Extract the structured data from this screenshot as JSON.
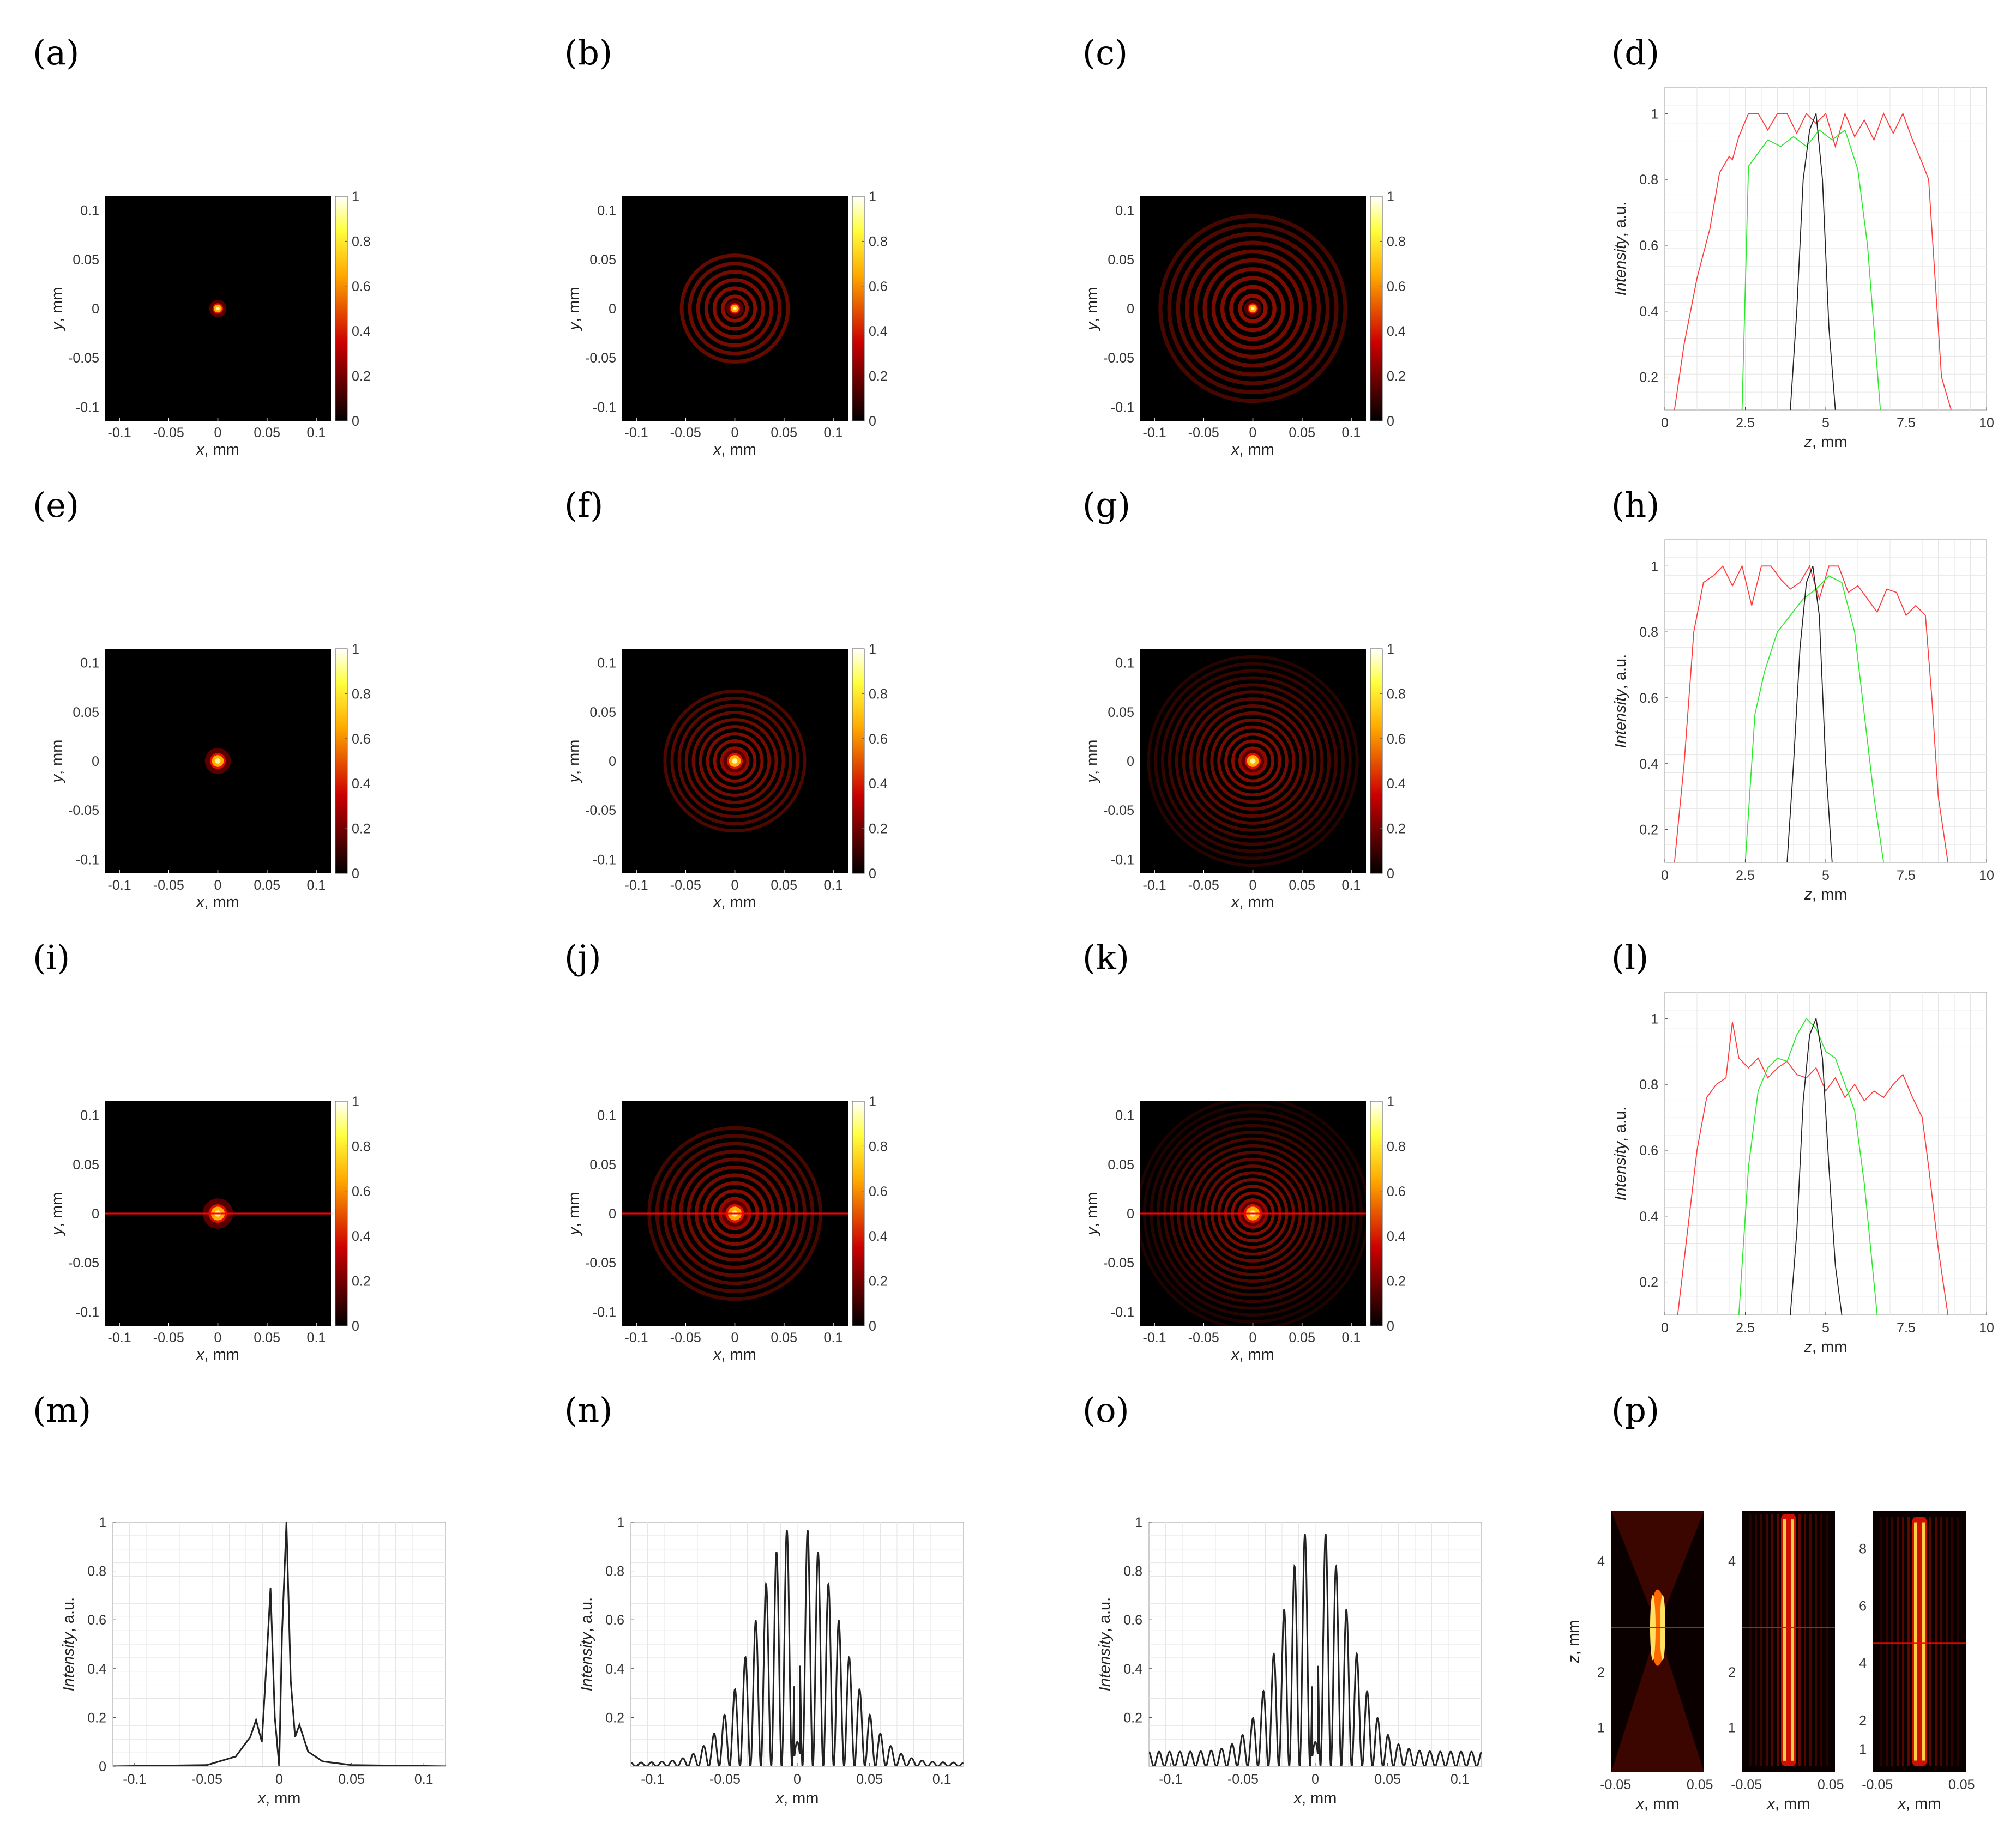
{
  "panel_labels": [
    "(a)",
    "(b)",
    "(c)",
    "(d)",
    "(e)",
    "(f)",
    "(g)",
    "(h)",
    "(i)",
    "(j)",
    "(k)",
    "(l)",
    "(m)",
    "(n)",
    "(o)",
    "(p)"
  ],
  "colors": {
    "red": "#ff3b3b",
    "green": "#2ee82e",
    "black": "#222222",
    "line": "#ff0000"
  },
  "chart_data": [
    {
      "type": "heatmap",
      "panel": "(a)",
      "xlabel": "x, mm",
      "ylabel": "y, mm",
      "xticks": [
        -0.1,
        -0.05,
        0,
        0.05,
        0.1
      ],
      "yticks": [
        0.1,
        0.05,
        0,
        -0.05,
        -0.1
      ],
      "colorbar_ticks": [
        0,
        0.2,
        0.4,
        0.6,
        0.8,
        1
      ],
      "colormap": "hot",
      "center_ring_radius": 0.004,
      "rings": 0,
      "ring_extent": 0.01,
      "red_line_y": null
    },
    {
      "type": "heatmap",
      "panel": "(b)",
      "xlabel": "x, mm",
      "ylabel": "y, mm",
      "xticks": [
        -0.1,
        -0.05,
        0,
        0.05,
        0.1
      ],
      "yticks": [
        0.1,
        0.05,
        0,
        -0.05,
        -0.1
      ],
      "colorbar_ticks": [
        0,
        0.2,
        0.4,
        0.6,
        0.8,
        1
      ],
      "colormap": "hot",
      "center_ring_radius": 0.004,
      "rings": 6,
      "ring_extent": 0.05,
      "red_line_y": null
    },
    {
      "type": "heatmap",
      "panel": "(c)",
      "xlabel": "x, mm",
      "ylabel": "y, mm",
      "xticks": [
        -0.1,
        -0.05,
        0,
        0.05,
        0.1
      ],
      "yticks": [
        0.1,
        0.05,
        0,
        -0.05,
        -0.1
      ],
      "colorbar_ticks": [
        0,
        0.2,
        0.4,
        0.6,
        0.8,
        1
      ],
      "colormap": "hot",
      "center_ring_radius": 0.004,
      "rings": 10,
      "ring_extent": 0.09,
      "red_line_y": null
    },
    {
      "type": "line",
      "panel": "(d)",
      "xlabel": "z, mm",
      "ylabel": "Intensity, a.u.",
      "xlim": [
        0,
        10
      ],
      "ylim": [
        0.1,
        1.08
      ],
      "xticks": [
        0,
        2.5,
        5,
        7.5,
        10
      ],
      "yticks": [
        0.2,
        0.4,
        0.6,
        0.8,
        1
      ],
      "grid": true,
      "series": [
        {
          "color": "red",
          "x": [
            0.3,
            0.6,
            1.0,
            1.4,
            1.7,
            2.0,
            2.1,
            2.3,
            2.6,
            2.9,
            3.2,
            3.5,
            3.8,
            4.1,
            4.4,
            4.7,
            5.0,
            5.3,
            5.6,
            5.9,
            6.2,
            6.5,
            6.8,
            7.1,
            7.4,
            7.7,
            8.0,
            8.2,
            8.4,
            8.6,
            8.9
          ],
          "y": [
            0.1,
            0.3,
            0.5,
            0.65,
            0.82,
            0.87,
            0.86,
            0.93,
            1.0,
            1.0,
            0.95,
            1.0,
            1.0,
            0.94,
            1.0,
            0.97,
            1.0,
            0.9,
            1.0,
            0.93,
            0.98,
            0.92,
            1.0,
            0.94,
            1.0,
            0.92,
            0.85,
            0.8,
            0.5,
            0.2,
            0.1
          ]
        },
        {
          "color": "green",
          "x": [
            2.4,
            2.6,
            2.9,
            3.2,
            3.6,
            4.0,
            4.4,
            4.8,
            5.2,
            5.6,
            6.0,
            6.3,
            6.7
          ],
          "y": [
            0.1,
            0.84,
            0.88,
            0.92,
            0.9,
            0.93,
            0.9,
            0.95,
            0.92,
            0.95,
            0.83,
            0.6,
            0.1
          ]
        },
        {
          "color": "black",
          "x": [
            3.9,
            4.1,
            4.3,
            4.5,
            4.7,
            4.9,
            5.1,
            5.3
          ],
          "y": [
            0.1,
            0.4,
            0.8,
            0.95,
            1.0,
            0.8,
            0.35,
            0.1
          ]
        }
      ]
    },
    {
      "type": "heatmap",
      "panel": "(e)",
      "xlabel": "x, mm",
      "ylabel": "y, mm",
      "xticks": [
        -0.1,
        -0.05,
        0,
        0.05,
        0.1
      ],
      "yticks": [
        0.1,
        0.05,
        0,
        -0.05,
        -0.1
      ],
      "colorbar_ticks": [
        0,
        0.2,
        0.4,
        0.6,
        0.8,
        1
      ],
      "colormap": "hot",
      "center_ring_radius": 0.006,
      "rings": 0,
      "ring_extent": 0.015,
      "red_line_y": null
    },
    {
      "type": "heatmap",
      "panel": "(f)",
      "xlabel": "x, mm",
      "ylabel": "y, mm",
      "xticks": [
        -0.1,
        -0.05,
        0,
        0.05,
        0.1
      ],
      "yticks": [
        0.1,
        0.05,
        0,
        -0.05,
        -0.1
      ],
      "colorbar_ticks": [
        0,
        0.2,
        0.4,
        0.6,
        0.8,
        1
      ],
      "colormap": "hot",
      "center_ring_radius": 0.006,
      "rings": 9,
      "ring_extent": 0.065,
      "red_line_y": null
    },
    {
      "type": "heatmap",
      "panel": "(g)",
      "xlabel": "x, mm",
      "ylabel": "y, mm",
      "xticks": [
        -0.1,
        -0.05,
        0,
        0.05,
        0.1
      ],
      "yticks": [
        0.1,
        0.05,
        0,
        -0.05,
        -0.1
      ],
      "colorbar_ticks": [
        0,
        0.2,
        0.4,
        0.6,
        0.8,
        1
      ],
      "colormap": "hot",
      "center_ring_radius": 0.006,
      "rings": 14,
      "ring_extent": 0.1,
      "red_line_y": null
    },
    {
      "type": "line",
      "panel": "(h)",
      "xlabel": "z, mm",
      "ylabel": "Intensity, a.u.",
      "xlim": [
        0,
        10
      ],
      "ylim": [
        0.1,
        1.08
      ],
      "xticks": [
        0,
        2.5,
        5,
        7.5,
        10
      ],
      "yticks": [
        0.2,
        0.4,
        0.6,
        0.8,
        1
      ],
      "grid": true,
      "series": [
        {
          "color": "red",
          "x": [
            0.3,
            0.6,
            0.9,
            1.2,
            1.5,
            1.8,
            2.1,
            2.4,
            2.7,
            3.0,
            3.3,
            3.6,
            3.9,
            4.2,
            4.5,
            4.8,
            5.1,
            5.4,
            5.7,
            6.0,
            6.3,
            6.6,
            6.9,
            7.2,
            7.5,
            7.8,
            8.1,
            8.3,
            8.5,
            8.8
          ],
          "y": [
            0.1,
            0.4,
            0.8,
            0.95,
            0.97,
            1.0,
            0.94,
            1.0,
            0.88,
            1.0,
            1.0,
            0.96,
            0.93,
            0.95,
            1.0,
            0.9,
            1.0,
            1.0,
            0.92,
            0.94,
            0.9,
            0.86,
            0.93,
            0.92,
            0.85,
            0.88,
            0.85,
            0.6,
            0.3,
            0.1
          ]
        },
        {
          "color": "green",
          "x": [
            2.5,
            2.8,
            3.1,
            3.5,
            3.9,
            4.3,
            4.7,
            5.1,
            5.5,
            5.9,
            6.2,
            6.5,
            6.8
          ],
          "y": [
            0.1,
            0.55,
            0.68,
            0.8,
            0.85,
            0.9,
            0.93,
            0.97,
            0.95,
            0.8,
            0.55,
            0.3,
            0.1
          ]
        },
        {
          "color": "black",
          "x": [
            3.8,
            4.0,
            4.2,
            4.4,
            4.6,
            4.8,
            5.0,
            5.2
          ],
          "y": [
            0.1,
            0.4,
            0.75,
            0.95,
            1.0,
            0.85,
            0.4,
            0.1
          ]
        }
      ]
    },
    {
      "type": "heatmap",
      "panel": "(i)",
      "xlabel": "x, mm",
      "ylabel": "y, mm",
      "xticks": [
        -0.1,
        -0.05,
        0,
        0.05,
        0.1
      ],
      "yticks": [
        0.1,
        0.05,
        0,
        -0.05,
        -0.1
      ],
      "colorbar_ticks": [
        0,
        0.2,
        0.4,
        0.6,
        0.8,
        1
      ],
      "colormap": "hot",
      "center_ring_radius": 0.007,
      "rings": 0,
      "ring_extent": 0.02,
      "red_line_y": 0
    },
    {
      "type": "heatmap",
      "panel": "(j)",
      "xlabel": "x, mm",
      "ylabel": "y, mm",
      "xticks": [
        -0.1,
        -0.05,
        0,
        0.05,
        0.1
      ],
      "yticks": [
        0.1,
        0.05,
        0,
        -0.05,
        -0.1
      ],
      "colorbar_ticks": [
        0,
        0.2,
        0.4,
        0.6,
        0.8,
        1
      ],
      "colormap": "hot",
      "center_ring_radius": 0.007,
      "rings": 10,
      "ring_extent": 0.08,
      "red_line_y": 0
    },
    {
      "type": "heatmap",
      "panel": "(k)",
      "xlabel": "x, mm",
      "ylabel": "y, mm",
      "xticks": [
        -0.1,
        -0.05,
        0,
        0.05,
        0.1
      ],
      "yticks": [
        0.1,
        0.05,
        0,
        -0.05,
        -0.1
      ],
      "colorbar_ticks": [
        0,
        0.2,
        0.4,
        0.6,
        0.8,
        1
      ],
      "colormap": "hot",
      "center_ring_radius": 0.007,
      "rings": 16,
      "ring_extent": 0.11,
      "red_line_y": 0
    },
    {
      "type": "line",
      "panel": "(l)",
      "xlabel": "z, mm",
      "ylabel": "Intensity, a.u.",
      "xlim": [
        0,
        10
      ],
      "ylim": [
        0.1,
        1.08
      ],
      "xticks": [
        0,
        2.5,
        5,
        7.5,
        10
      ],
      "yticks": [
        0.2,
        0.4,
        0.6,
        0.8,
        1
      ],
      "grid": true,
      "series": [
        {
          "color": "red",
          "x": [
            0.4,
            0.7,
            1.0,
            1.3,
            1.6,
            1.9,
            2.1,
            2.3,
            2.6,
            2.9,
            3.2,
            3.5,
            3.8,
            4.1,
            4.4,
            4.7,
            5.0,
            5.3,
            5.6,
            5.9,
            6.2,
            6.5,
            6.8,
            7.1,
            7.4,
            7.7,
            8.0,
            8.2,
            8.5,
            8.8
          ],
          "y": [
            0.1,
            0.35,
            0.6,
            0.76,
            0.8,
            0.82,
            0.99,
            0.88,
            0.85,
            0.88,
            0.82,
            0.85,
            0.87,
            0.83,
            0.82,
            0.85,
            0.78,
            0.82,
            0.76,
            0.8,
            0.75,
            0.78,
            0.76,
            0.8,
            0.83,
            0.76,
            0.7,
            0.55,
            0.3,
            0.1
          ]
        },
        {
          "color": "green",
          "x": [
            2.3,
            2.6,
            2.9,
            3.2,
            3.5,
            3.8,
            4.1,
            4.4,
            4.7,
            5.0,
            5.3,
            5.6,
            5.9,
            6.2,
            6.6
          ],
          "y": [
            0.1,
            0.55,
            0.78,
            0.85,
            0.88,
            0.87,
            0.95,
            1.0,
            0.97,
            0.9,
            0.88,
            0.8,
            0.72,
            0.5,
            0.1
          ]
        },
        {
          "color": "black",
          "x": [
            3.9,
            4.1,
            4.3,
            4.5,
            4.7,
            4.9,
            5.1,
            5.3,
            5.5
          ],
          "y": [
            0.1,
            0.35,
            0.75,
            0.95,
            1.0,
            0.88,
            0.55,
            0.25,
            0.1
          ]
        }
      ]
    },
    {
      "type": "line",
      "panel": "(m)",
      "xlabel": "x, mm",
      "ylabel": "Intensity, a.u.",
      "xlim": [
        -0.115,
        0.115
      ],
      "ylim": [
        0,
        1
      ],
      "xticks": [
        -0.1,
        -0.05,
        0,
        0.05,
        0.1
      ],
      "yticks": [
        0,
        0.2,
        0.4,
        0.6,
        0.8,
        1
      ],
      "grid": true,
      "series": [
        {
          "color": "black",
          "x": [
            -0.115,
            -0.05,
            -0.03,
            -0.02,
            -0.016,
            -0.012,
            -0.009,
            -0.006,
            -0.003,
            0.0,
            0.002,
            0.005,
            0.008,
            0.011,
            0.014,
            0.02,
            0.03,
            0.05,
            0.115
          ],
          "y": [
            0.0,
            0.005,
            0.04,
            0.12,
            0.19,
            0.1,
            0.4,
            0.73,
            0.2,
            0.0,
            0.55,
            1.0,
            0.35,
            0.12,
            0.17,
            0.06,
            0.02,
            0.005,
            0.0
          ]
        }
      ]
    },
    {
      "type": "line",
      "panel": "(n)",
      "xlabel": "x, mm",
      "ylabel": "Intensity, a.u.",
      "xlim": [
        -0.115,
        0.115
      ],
      "ylim": [
        0,
        1
      ],
      "xticks": [
        -0.1,
        -0.05,
        0,
        0.05,
        0.1
      ],
      "yticks": [
        0.2,
        0.4,
        0.6,
        0.8,
        1
      ],
      "grid": true,
      "fringe_period": 0.0072,
      "envelope_sigma": 0.028,
      "center_peaks": [
        -0.0065,
        0.0065
      ],
      "series": [
        {
          "color": "black",
          "note": "fringe pattern"
        }
      ]
    },
    {
      "type": "line",
      "panel": "(o)",
      "xlabel": "x, mm",
      "ylabel": "Intensity, a.u.",
      "xlim": [
        -0.115,
        0.115
      ],
      "ylim": [
        0,
        1
      ],
      "xticks": [
        -0.1,
        -0.05,
        0,
        0.05,
        0.1
      ],
      "yticks": [
        0.2,
        0.4,
        0.6,
        0.8,
        1
      ],
      "grid": true,
      "fringe_period": 0.0072,
      "envelope_sigma": 0.022,
      "center_peaks": [
        -0.0065,
        0.0065
      ],
      "series": [
        {
          "color": "black",
          "note": "fringe pattern"
        }
      ]
    },
    {
      "type": "heatmap",
      "panel": "(p)",
      "subplots": [
        {
          "xlabel": "x, mm",
          "ylabel": "z, mm",
          "xticks": [
            -0.05,
            0.05
          ],
          "yticks": [
            1,
            2,
            4
          ],
          "ylim": [
            0.2,
            4.9
          ],
          "red_line_z": 2.8,
          "beam": "focus"
        },
        {
          "xlabel": "x, mm",
          "ylabel": "",
          "xticks": [
            -0.05,
            0.05
          ],
          "yticks": [
            1,
            2,
            4
          ],
          "ylim": [
            0.2,
            4.9
          ],
          "red_line_z": 2.8,
          "beam": "bessel"
        },
        {
          "xlabel": "x, mm",
          "ylabel": "",
          "xticks": [
            -0.05,
            0.05
          ],
          "yticks": [
            1,
            2,
            4,
            6,
            8
          ],
          "ylim": [
            0.2,
            9.3
          ],
          "red_line_z": 4.7,
          "beam": "bessel-wide"
        }
      ]
    }
  ]
}
